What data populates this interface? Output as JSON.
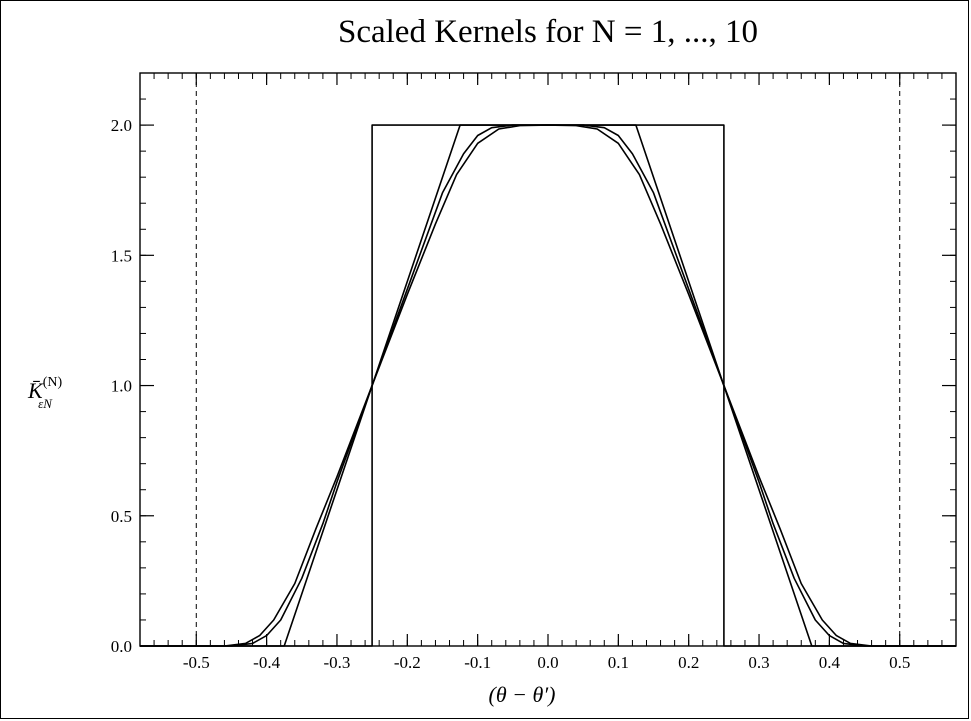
{
  "chart_data": {
    "type": "line",
    "title": "Scaled Kernels for N = 1, ..., 10",
    "xlabel": "(θ − θ′)",
    "ylabel": "K̄",
    "ylabel_sup": "(N)",
    "ylabel_sub": "εN",
    "xlim": [
      -0.58,
      0.58
    ],
    "ylim": [
      0,
      2.2
    ],
    "x_ticks": [
      -0.5,
      -0.4,
      -0.3,
      -0.2,
      -0.1,
      0.0,
      0.1,
      0.2,
      0.3,
      0.4,
      0.5
    ],
    "x_tick_labels": [
      "-0.5",
      "-0.4",
      "-0.3",
      "-0.2",
      "-0.1",
      "0.0",
      "0.1",
      "0.2",
      "0.3",
      "0.4",
      "0.5"
    ],
    "y_ticks": [
      0.0,
      0.5,
      1.0,
      1.5,
      2.0
    ],
    "y_tick_labels": [
      "0.0",
      "0.5",
      "1.0",
      "1.5",
      "2.0"
    ],
    "x_minor_step": 0.02,
    "y_minor_step": 0.1,
    "vlines": [
      -0.5,
      0.5
    ],
    "vline_style": "dashed",
    "grid": false,
    "line_color": "#000000",
    "series": [
      {
        "x": [
          -0.58,
          -0.25,
          -0.25,
          0.25,
          0.25,
          0.58
        ],
        "y": [
          0,
          0,
          2,
          2,
          0,
          0
        ]
      },
      {
        "x": [
          -0.58,
          -0.375,
          -0.125,
          0.125,
          0.375,
          0.58
        ],
        "y": [
          0,
          0,
          2,
          2,
          0,
          0
        ]
      },
      {
        "x": [
          -0.58,
          -0.45,
          -0.42,
          -0.4,
          -0.38,
          -0.35,
          -0.32,
          -0.3,
          -0.25,
          -0.2,
          -0.15,
          -0.12,
          -0.1,
          -0.08,
          -0.05,
          0,
          0.05,
          0.08,
          0.1,
          0.12,
          0.15,
          0.2,
          0.25,
          0.3,
          0.32,
          0.35,
          0.38,
          0.4,
          0.42,
          0.45,
          0.58
        ],
        "y": [
          0,
          0,
          0.01,
          0.04,
          0.1,
          0.26,
          0.47,
          0.63,
          1.0,
          1.37,
          1.74,
          1.89,
          1.96,
          1.99,
          2.0,
          2.0,
          2.0,
          1.99,
          1.96,
          1.89,
          1.74,
          1.37,
          1.0,
          0.63,
          0.47,
          0.26,
          0.1,
          0.04,
          0.01,
          0,
          0
        ]
      },
      {
        "x": [
          -0.58,
          -0.46,
          -0.43,
          -0.41,
          -0.39,
          -0.36,
          -0.33,
          -0.3,
          -0.25,
          -0.2,
          -0.16,
          -0.13,
          -0.1,
          -0.07,
          -0.04,
          0,
          0.04,
          0.07,
          0.1,
          0.13,
          0.16,
          0.2,
          0.25,
          0.3,
          0.33,
          0.36,
          0.39,
          0.41,
          0.43,
          0.46,
          0.58
        ],
        "y": [
          0,
          0,
          0.01,
          0.04,
          0.1,
          0.24,
          0.45,
          0.65,
          1.0,
          1.35,
          1.62,
          1.81,
          1.93,
          1.985,
          1.998,
          2.0,
          1.998,
          1.985,
          1.93,
          1.81,
          1.62,
          1.35,
          1.0,
          0.65,
          0.45,
          0.24,
          0.1,
          0.04,
          0.01,
          0,
          0
        ]
      }
    ]
  }
}
